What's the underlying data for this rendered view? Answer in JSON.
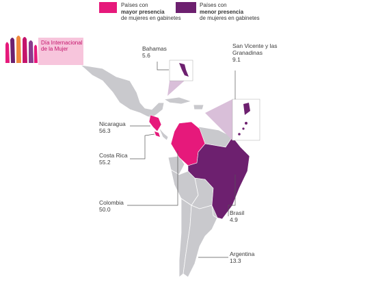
{
  "legend": [
    {
      "prefix": "Países  con",
      "emphasis": "mayor presencia",
      "suffix": "de mujeres en gabinetes"
    },
    {
      "prefix": "Países  con",
      "emphasis": "menor presencia",
      "suffix": "de mujeres en gabinetes"
    }
  ],
  "badge": {
    "text": "Día Internacional de la Mujer"
  },
  "countries": [
    {
      "name": "Bahamas",
      "value": "5.6"
    },
    {
      "name": "San Vicente y las Granadinas",
      "value": "9.1"
    },
    {
      "name": "Nicaragua",
      "value": "56.3"
    },
    {
      "name": "Costa Rica",
      "value": "55.2"
    },
    {
      "name": "Colombia",
      "value": "50.0"
    },
    {
      "name": "Brasil",
      "value": "4.9"
    },
    {
      "name": "Argentina",
      "value": "13.3"
    }
  ]
}
